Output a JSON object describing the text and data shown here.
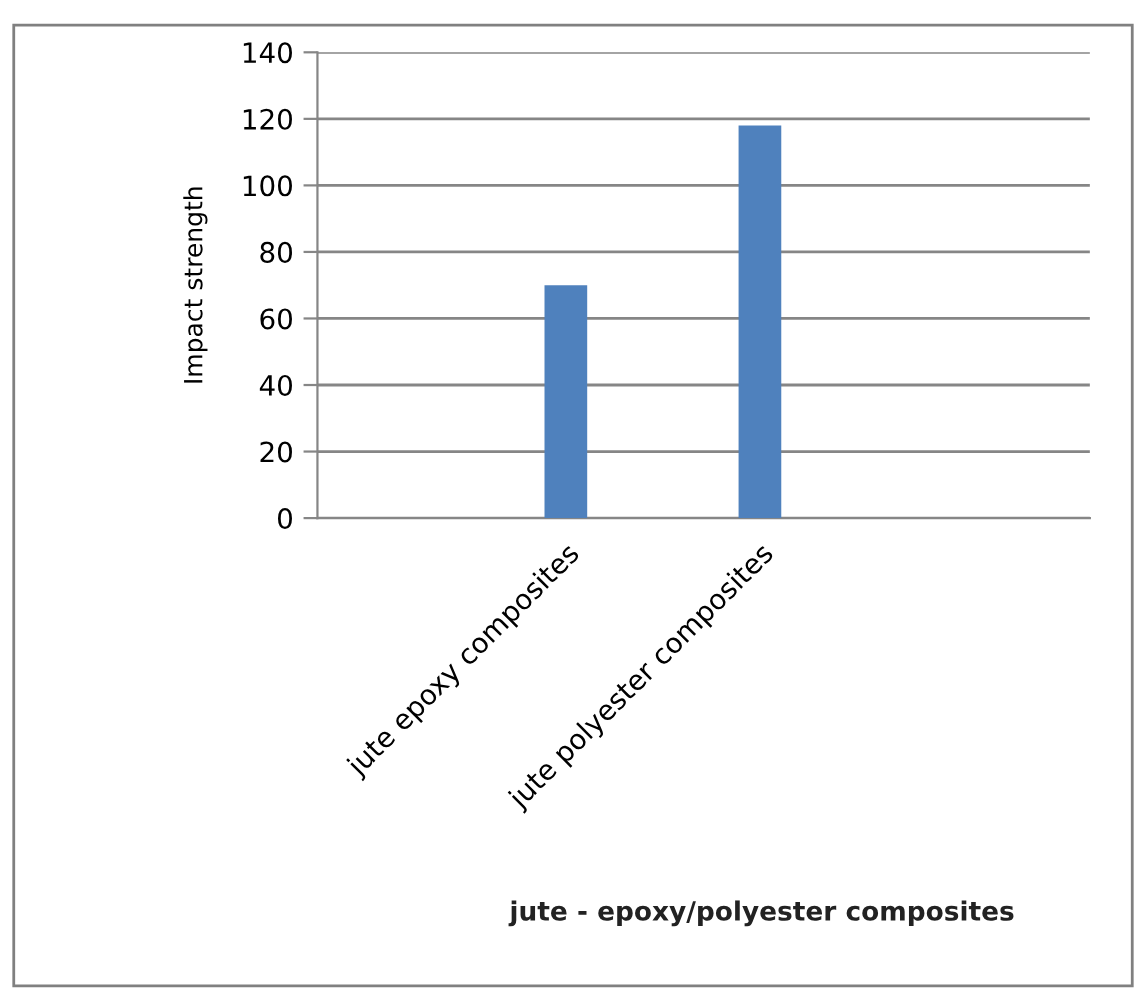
{
  "chart_data": {
    "type": "bar",
    "categories": [
      "jute epoxy composites",
      "jute polyester composites"
    ],
    "values": [
      70,
      118
    ],
    "color": "#4f81bd",
    "ylim": [
      0,
      140
    ],
    "yticks": [
      0,
      20,
      40,
      60,
      80,
      100,
      120,
      140
    ],
    "grid": "y",
    "xlabel": "jute - epoxy/polyester composites",
    "ylabel": "Impact strength"
  }
}
